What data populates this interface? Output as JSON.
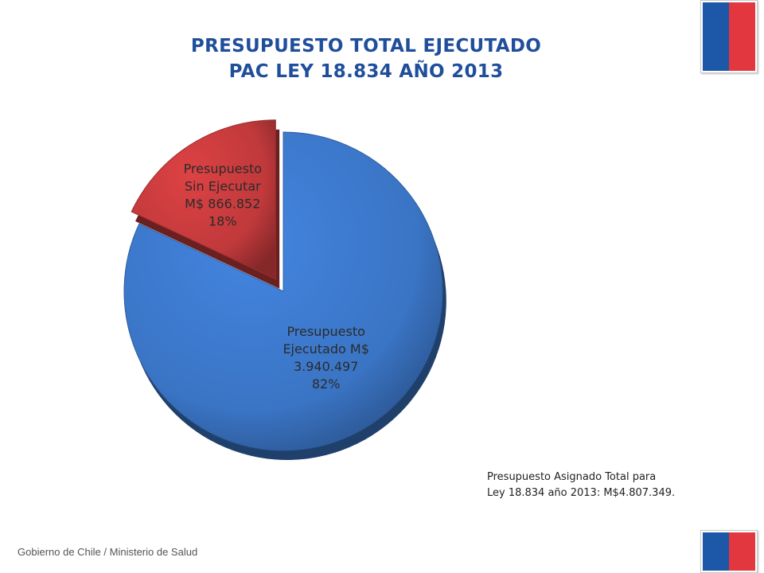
{
  "title": {
    "line1": "PRESUPUESTO TOTAL EJECUTADO",
    "line2": "PAC LEY 18.834 AÑO 2013"
  },
  "chart_data": {
    "type": "pie",
    "title": "PRESUPUESTO TOTAL EJECUTADO PAC LEY 18.834 AÑO 2013",
    "slices": [
      {
        "label": "Presupuesto Ejecutado M$",
        "value": 3940497,
        "value_text": "3.940.497",
        "percent": 82,
        "percent_text": "82%",
        "color": "#3a74c4",
        "exploded": false
      },
      {
        "label": "Presupuesto Sin Ejecutar M$",
        "value": 866852,
        "value_text": "866.852",
        "percent": 18,
        "percent_text": "18%",
        "color": "#c0393b",
        "exploded": true
      }
    ],
    "label_lines": [
      [
        "Presupuesto",
        "Ejecutado M$",
        "3.940.497",
        "82%"
      ],
      [
        "Presupuesto",
        "Sin Ejecutar",
        "M$ 866.852",
        "18%"
      ]
    ]
  },
  "note": {
    "line1": "Presupuesto Asignado Total para",
    "line2": "Ley 18.834 año 2013: M$4.807.349."
  },
  "footer": "Gobierno de Chile / Ministerio de Salud",
  "colors": {
    "title": "#1f4e9b",
    "flag_blue": "#1d57a8",
    "flag_red": "#e2373f"
  }
}
